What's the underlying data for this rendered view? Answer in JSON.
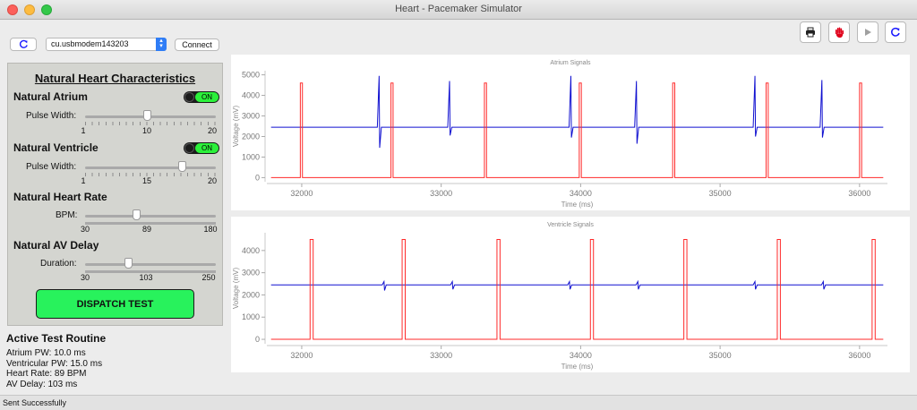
{
  "window": {
    "title": "Heart - Pacemaker Simulator"
  },
  "connection": {
    "port": "cu.usbmodem143203",
    "connect_label": "Connect"
  },
  "panel": {
    "title": "Natural Heart Characteristics",
    "atrium": {
      "title": "Natural Atrium",
      "toggle": "ON",
      "slider_label": "Pulse Width:",
      "min": "1",
      "mid": "10",
      "max": "20",
      "value": 10,
      "vmin": 1,
      "vmax": 20
    },
    "ventricle": {
      "title": "Natural Ventricle",
      "toggle": "ON",
      "slider_label": "Pulse Width:",
      "min": "1",
      "mid": "15",
      "max": "20",
      "value": 15,
      "vmin": 1,
      "vmax": 20
    },
    "heart_rate": {
      "title": "Natural Heart Rate",
      "slider_label": "BPM:",
      "min": "30",
      "mid": "89",
      "max": "180",
      "value": 89,
      "vmin": 30,
      "vmax": 180
    },
    "av_delay": {
      "title": "Natural AV Delay",
      "slider_label": "Duration:",
      "min": "30",
      "mid": "103",
      "max": "250",
      "value": 103,
      "vmin": 30,
      "vmax": 250
    },
    "dispatch_label": "DISPATCH TEST"
  },
  "routine": {
    "title": "Active Test Routine",
    "lines": [
      "Atrium PW: 10.0 ms",
      "Ventricular PW: 15.0 ms",
      "Heart Rate: 89 BPM",
      "AV Delay: 103 ms"
    ]
  },
  "status": {
    "text": "Sent Successfully"
  },
  "colors": {
    "paced": "#ff2a2a",
    "sensed": "#1010d0",
    "dispatch": "#28f25c",
    "toggle_on": "#2bf03a"
  },
  "toolbar_icons": [
    "print-icon",
    "stop-hand-icon",
    "play-icon",
    "refresh-icon"
  ],
  "chart_data": [
    {
      "type": "line",
      "title": "Atrium Signals",
      "xlabel": "Time (ms)",
      "ylabel": "Voltage (mV)",
      "xlim": [
        31750,
        36200
      ],
      "ylim": [
        -200,
        5200
      ],
      "xticks": [
        32000,
        33000,
        34000,
        35000,
        36000
      ],
      "yticks": [
        0,
        1000,
        2000,
        3000,
        4000,
        5000
      ],
      "series": [
        {
          "color": "#1010d0",
          "baseline": 2450,
          "spikes": [
            {
              "x": 32555,
              "hi": 4950,
              "lo": 1450
            },
            {
              "x": 33060,
              "hi": 4700,
              "lo": 2050
            },
            {
              "x": 33930,
              "hi": 4950,
              "lo": 1950
            },
            {
              "x": 34400,
              "hi": 4700,
              "lo": 1650
            },
            {
              "x": 35250,
              "hi": 4950,
              "lo": 2000
            },
            {
              "x": 35730,
              "hi": 4750,
              "lo": 1950
            }
          ]
        },
        {
          "color": "#ff2a2a",
          "baseline": 0,
          "pulses": [
            {
              "x": 31990,
              "w": 15,
              "h": 4600
            },
            {
              "x": 32640,
              "w": 15,
              "h": 4600
            },
            {
              "x": 33310,
              "w": 15,
              "h": 4600
            },
            {
              "x": 33990,
              "w": 15,
              "h": 4600
            },
            {
              "x": 34660,
              "w": 15,
              "h": 4600
            },
            {
              "x": 35330,
              "w": 15,
              "h": 4600
            },
            {
              "x": 36000,
              "w": 15,
              "h": 4600
            }
          ]
        }
      ]
    },
    {
      "type": "line",
      "title": "Ventricle Signals",
      "xlabel": "Time (ms)",
      "ylabel": "Voltage (mV)",
      "xlim": [
        31750,
        36200
      ],
      "ylim": [
        -200,
        4800
      ],
      "xticks": [
        32000,
        33000,
        34000,
        35000,
        36000
      ],
      "yticks": [
        0,
        1000,
        2000,
        3000,
        4000
      ],
      "series": [
        {
          "color": "#1010d0",
          "baseline": 2450,
          "spikes": [
            {
              "x": 32590,
              "hi": 2600,
              "lo": 2200
            },
            {
              "x": 33080,
              "hi": 2600,
              "lo": 2250
            },
            {
              "x": 33920,
              "hi": 2600,
              "lo": 2250
            },
            {
              "x": 34410,
              "hi": 2600,
              "lo": 2250
            },
            {
              "x": 35250,
              "hi": 2600,
              "lo": 2250
            },
            {
              "x": 35740,
              "hi": 2600,
              "lo": 2250
            }
          ]
        },
        {
          "color": "#ff2a2a",
          "baseline": 0,
          "pulses": [
            {
              "x": 32060,
              "w": 22,
              "h": 4500
            },
            {
              "x": 32720,
              "w": 22,
              "h": 4500
            },
            {
              "x": 33400,
              "w": 22,
              "h": 4500
            },
            {
              "x": 34070,
              "w": 22,
              "h": 4500
            },
            {
              "x": 34740,
              "w": 22,
              "h": 4500
            },
            {
              "x": 35410,
              "w": 22,
              "h": 4500
            },
            {
              "x": 36090,
              "w": 22,
              "h": 4500
            }
          ]
        }
      ]
    }
  ]
}
